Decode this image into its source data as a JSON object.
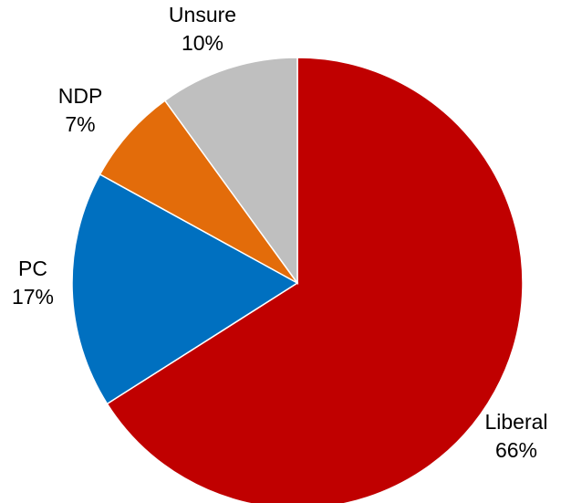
{
  "chart_data": {
    "type": "pie",
    "title": "",
    "start_angle_deg": 0,
    "direction": "clockwise",
    "slices": [
      {
        "label": "Liberal",
        "value": 66,
        "value_label": "66%",
        "color": "#C00000"
      },
      {
        "label": "PC",
        "value": 17,
        "value_label": "17%",
        "color": "#0070C0"
      },
      {
        "label": "NDP",
        "value": 7,
        "value_label": "7%",
        "color": "#E36C0A"
      },
      {
        "label": "Unsure",
        "value": 10,
        "value_label": "10%",
        "color": "#BFBFBF"
      }
    ],
    "legend": "none",
    "data_labels": "outside"
  }
}
